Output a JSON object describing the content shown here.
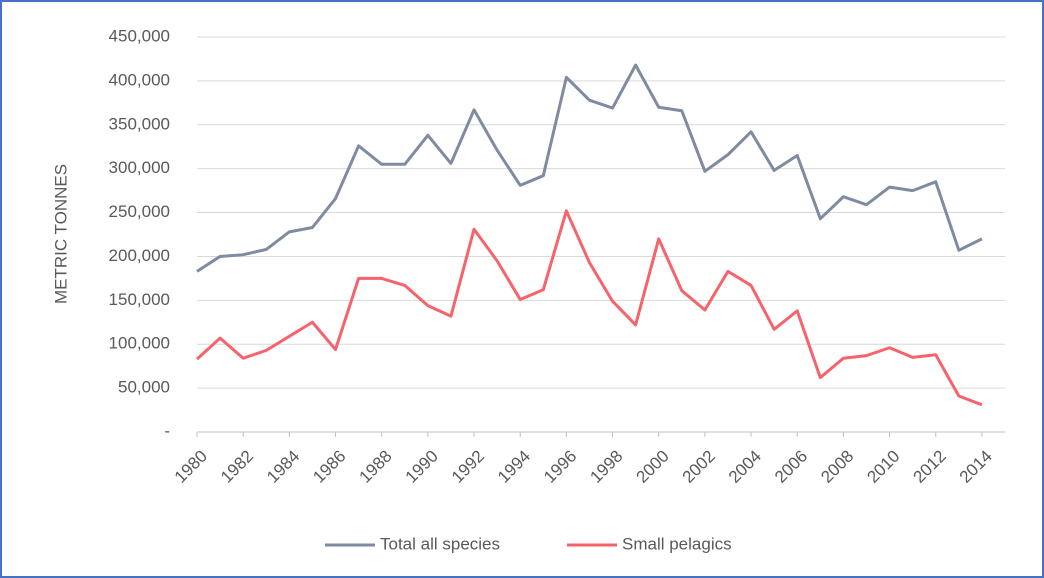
{
  "chart_data": {
    "type": "line",
    "y_label": "METRIC TONNES",
    "x": [
      1980,
      1981,
      1982,
      1983,
      1984,
      1985,
      1986,
      1987,
      1988,
      1989,
      1990,
      1991,
      1992,
      1993,
      1994,
      1995,
      1996,
      1997,
      1998,
      1999,
      2000,
      2001,
      2002,
      2003,
      2004,
      2005,
      2006,
      2007,
      2008,
      2009,
      2010,
      2011,
      2012,
      2013,
      2014
    ],
    "series": [
      {
        "name": "Total all species",
        "color": "#7f8ba1",
        "values": [
          183000,
          200000,
          202000,
          208000,
          228000,
          233000,
          266000,
          326000,
          305000,
          305000,
          338000,
          306000,
          367000,
          321000,
          281000,
          292000,
          404000,
          378000,
          369000,
          418000,
          370000,
          366000,
          297000,
          316000,
          342000,
          298000,
          315000,
          243000,
          268000,
          259000,
          279000,
          275000,
          285000,
          207000,
          220000
        ]
      },
      {
        "name": "Small pelagics",
        "color": "#f7636b",
        "values": [
          83000,
          107000,
          84000,
          93000,
          109000,
          125000,
          94000,
          175000,
          175000,
          167000,
          144000,
          132000,
          231000,
          195000,
          151000,
          162000,
          252000,
          193000,
          149000,
          122000,
          220000,
          161000,
          139000,
          183000,
          167000,
          117000,
          138000,
          62000,
          84000,
          87000,
          96000,
          85000,
          88000,
          41000,
          31000
        ]
      }
    ],
    "xlim": [
      1980,
      2015
    ],
    "xticks": [
      1980,
      1982,
      1984,
      1986,
      1988,
      1990,
      1992,
      1994,
      1996,
      1998,
      2000,
      2002,
      2004,
      2006,
      2008,
      2010,
      2012,
      2014
    ],
    "ylim": [
      0,
      450000
    ],
    "yticks": [
      {
        "value": 0,
        "label": "-"
      },
      {
        "value": 50000,
        "label": "50,000"
      },
      {
        "value": 100000,
        "label": "100,000"
      },
      {
        "value": 150000,
        "label": "150,000"
      },
      {
        "value": 200000,
        "label": "200,000"
      },
      {
        "value": 250000,
        "label": "250,000"
      },
      {
        "value": 300000,
        "label": "300,000"
      },
      {
        "value": 350000,
        "label": "350,000"
      },
      {
        "value": 400000,
        "label": "400,000"
      },
      {
        "value": 450000,
        "label": "450,000"
      }
    ],
    "grid": true,
    "legend": "bottom"
  }
}
